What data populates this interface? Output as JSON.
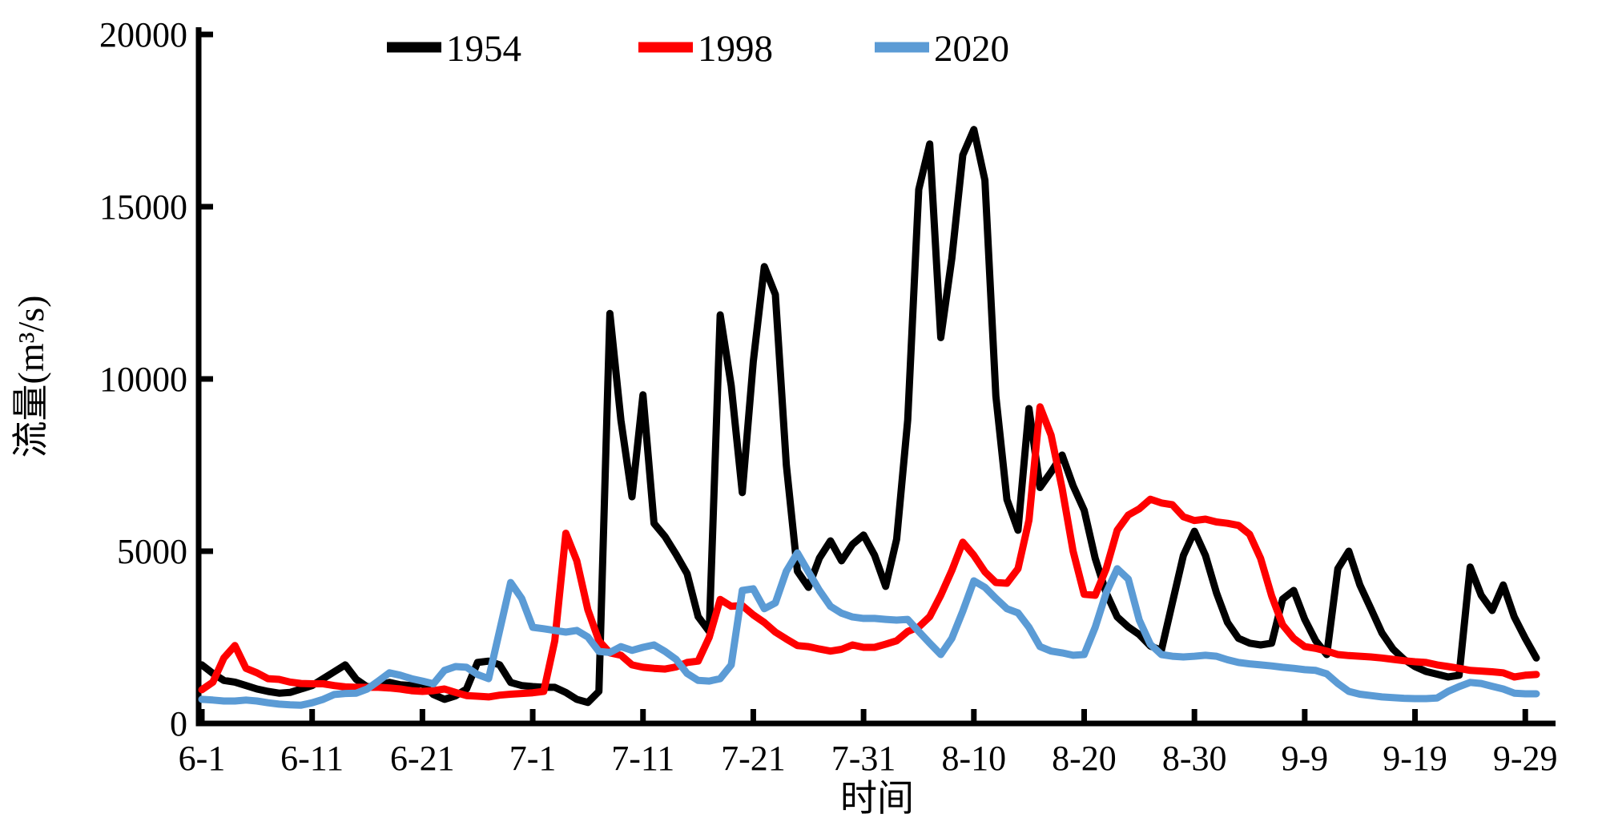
{
  "chart_data": {
    "type": "line",
    "title": "",
    "xlabel": "时间",
    "ylabel": "流量(m³/s)",
    "ylim": [
      0,
      20000
    ],
    "yticks": [
      0,
      5000,
      10000,
      15000,
      20000
    ],
    "ytick_labels": [
      "0",
      "5000",
      "10000",
      "15000",
      "20000"
    ],
    "xtick_labels": [
      "6-1",
      "6-11",
      "6-21",
      "7-1",
      "7-11",
      "7-21",
      "7-31",
      "8-10",
      "8-20",
      "8-30",
      "9-9",
      "9-19",
      "9-29"
    ],
    "grid": false,
    "legend_position": "top",
    "x_dates": [
      "6-1",
      "6-2",
      "6-3",
      "6-4",
      "6-5",
      "6-6",
      "6-7",
      "6-8",
      "6-9",
      "6-10",
      "6-11",
      "6-12",
      "6-13",
      "6-14",
      "6-15",
      "6-16",
      "6-17",
      "6-18",
      "6-19",
      "6-20",
      "6-21",
      "6-22",
      "6-23",
      "6-24",
      "6-25",
      "6-26",
      "6-27",
      "6-28",
      "6-29",
      "6-30",
      "7-1",
      "7-2",
      "7-3",
      "7-4",
      "7-5",
      "7-6",
      "7-7",
      "7-8",
      "7-9",
      "7-10",
      "7-11",
      "7-12",
      "7-13",
      "7-14",
      "7-15",
      "7-16",
      "7-17",
      "7-18",
      "7-19",
      "7-20",
      "7-21",
      "7-22",
      "7-23",
      "7-24",
      "7-25",
      "7-26",
      "7-27",
      "7-28",
      "7-29",
      "7-30",
      "7-31",
      "8-1",
      "8-2",
      "8-3",
      "8-4",
      "8-5",
      "8-6",
      "8-7",
      "8-8",
      "8-9",
      "8-10",
      "8-11",
      "8-12",
      "8-13",
      "8-14",
      "8-15",
      "8-16",
      "8-17",
      "8-18",
      "8-19",
      "8-20",
      "8-21",
      "8-22",
      "8-23",
      "8-24",
      "8-25",
      "8-26",
      "8-27",
      "8-28",
      "8-29",
      "8-30",
      "8-31",
      "9-1",
      "9-2",
      "9-3",
      "9-4",
      "9-5",
      "9-6",
      "9-7",
      "9-8",
      "9-9",
      "9-10",
      "9-11",
      "9-12",
      "9-13",
      "9-14",
      "9-15",
      "9-16",
      "9-17",
      "9-18",
      "9-19",
      "9-20",
      "9-21",
      "9-22",
      "9-23",
      "9-24",
      "9-25",
      "9-26",
      "9-27",
      "9-28",
      "9-29",
      "9-30"
    ],
    "series": [
      {
        "name": "1954",
        "color": "#000000",
        "values": [
          1700,
          1450,
          1250,
          1200,
          1100,
          1000,
          930,
          880,
          900,
          1000,
          1100,
          1300,
          1500,
          1700,
          1280,
          1060,
          1100,
          1190,
          1120,
          1100,
          1160,
          840,
          700,
          800,
          1000,
          1770,
          1810,
          1700,
          1190,
          1100,
          1070,
          1050,
          1050,
          900,
          700,
          610,
          930,
          11900,
          8800,
          6580,
          9540,
          5810,
          5420,
          4910,
          4350,
          3100,
          2670,
          11860,
          9800,
          6700,
          10500,
          13260,
          12450,
          7500,
          4420,
          3950,
          4800,
          5300,
          4720,
          5200,
          5470,
          4880,
          3980,
          5350,
          8800,
          15500,
          16820,
          11200,
          13500,
          16500,
          17240,
          15770,
          9500,
          6500,
          5610,
          9140,
          6850,
          7300,
          7790,
          6900,
          6190,
          4790,
          3790,
          3090,
          2800,
          2580,
          2250,
          2120,
          3500,
          4880,
          5580,
          4880,
          3790,
          2930,
          2470,
          2330,
          2280,
          2330,
          3610,
          3860,
          3020,
          2400,
          2000,
          4490,
          5000,
          4020,
          3330,
          2630,
          2160,
          1860,
          1650,
          1510,
          1430,
          1350,
          1400,
          4540,
          3720,
          3280,
          4020,
          3090,
          2470,
          1900
        ]
      },
      {
        "name": "1998",
        "color": "#FF0000",
        "values": [
          980,
          1200,
          1900,
          2260,
          1600,
          1470,
          1300,
          1280,
          1200,
          1160,
          1150,
          1150,
          1100,
          1060,
          1050,
          1050,
          1050,
          1030,
          1000,
          950,
          930,
          950,
          1000,
          900,
          810,
          790,
          770,
          820,
          850,
          870,
          890,
          930,
          2400,
          5520,
          4720,
          3300,
          2400,
          2050,
          1980,
          1700,
          1630,
          1600,
          1580,
          1640,
          1770,
          1810,
          2500,
          3600,
          3400,
          3420,
          3150,
          2930,
          2650,
          2450,
          2260,
          2230,
          2160,
          2100,
          2150,
          2280,
          2210,
          2210,
          2300,
          2400,
          2670,
          2800,
          3100,
          3720,
          4440,
          5260,
          4880,
          4400,
          4090,
          4070,
          4490,
          5900,
          9190,
          8370,
          6820,
          5000,
          3750,
          3720,
          4490,
          5610,
          6050,
          6230,
          6510,
          6400,
          6350,
          6000,
          5890,
          5930,
          5850,
          5810,
          5750,
          5490,
          4790,
          3700,
          2860,
          2470,
          2230,
          2180,
          2100,
          2000,
          1970,
          1950,
          1930,
          1900,
          1860,
          1820,
          1790,
          1770,
          1700,
          1650,
          1600,
          1540,
          1520,
          1500,
          1470,
          1350,
          1400,
          1420
        ]
      },
      {
        "name": "2020",
        "color": "#5B9BD5",
        "values": [
          700,
          680,
          650,
          650,
          680,
          650,
          600,
          560,
          540,
          530,
          600,
          700,
          840,
          870,
          880,
          1000,
          1230,
          1470,
          1400,
          1300,
          1230,
          1150,
          1540,
          1650,
          1630,
          1420,
          1300,
          2700,
          4090,
          3630,
          2790,
          2750,
          2700,
          2650,
          2700,
          2510,
          2090,
          2060,
          2230,
          2120,
          2210,
          2280,
          2090,
          1860,
          1450,
          1250,
          1230,
          1300,
          1700,
          3860,
          3910,
          3330,
          3500,
          4420,
          4950,
          4400,
          3860,
          3400,
          3200,
          3090,
          3050,
          3050,
          3020,
          3000,
          3020,
          2670,
          2330,
          2000,
          2470,
          3260,
          4140,
          3950,
          3630,
          3330,
          3210,
          2790,
          2230,
          2100,
          2050,
          1980,
          2000,
          2790,
          3790,
          4490,
          4190,
          3000,
          2300,
          2000,
          1950,
          1930,
          1950,
          1980,
          1950,
          1850,
          1770,
          1730,
          1700,
          1670,
          1630,
          1600,
          1560,
          1540,
          1440,
          1160,
          930,
          850,
          810,
          770,
          750,
          730,
          720,
          720,
          740,
          930,
          1070,
          1190,
          1160,
          1080,
          1000,
          880,
          860,
          860
        ]
      }
    ]
  }
}
